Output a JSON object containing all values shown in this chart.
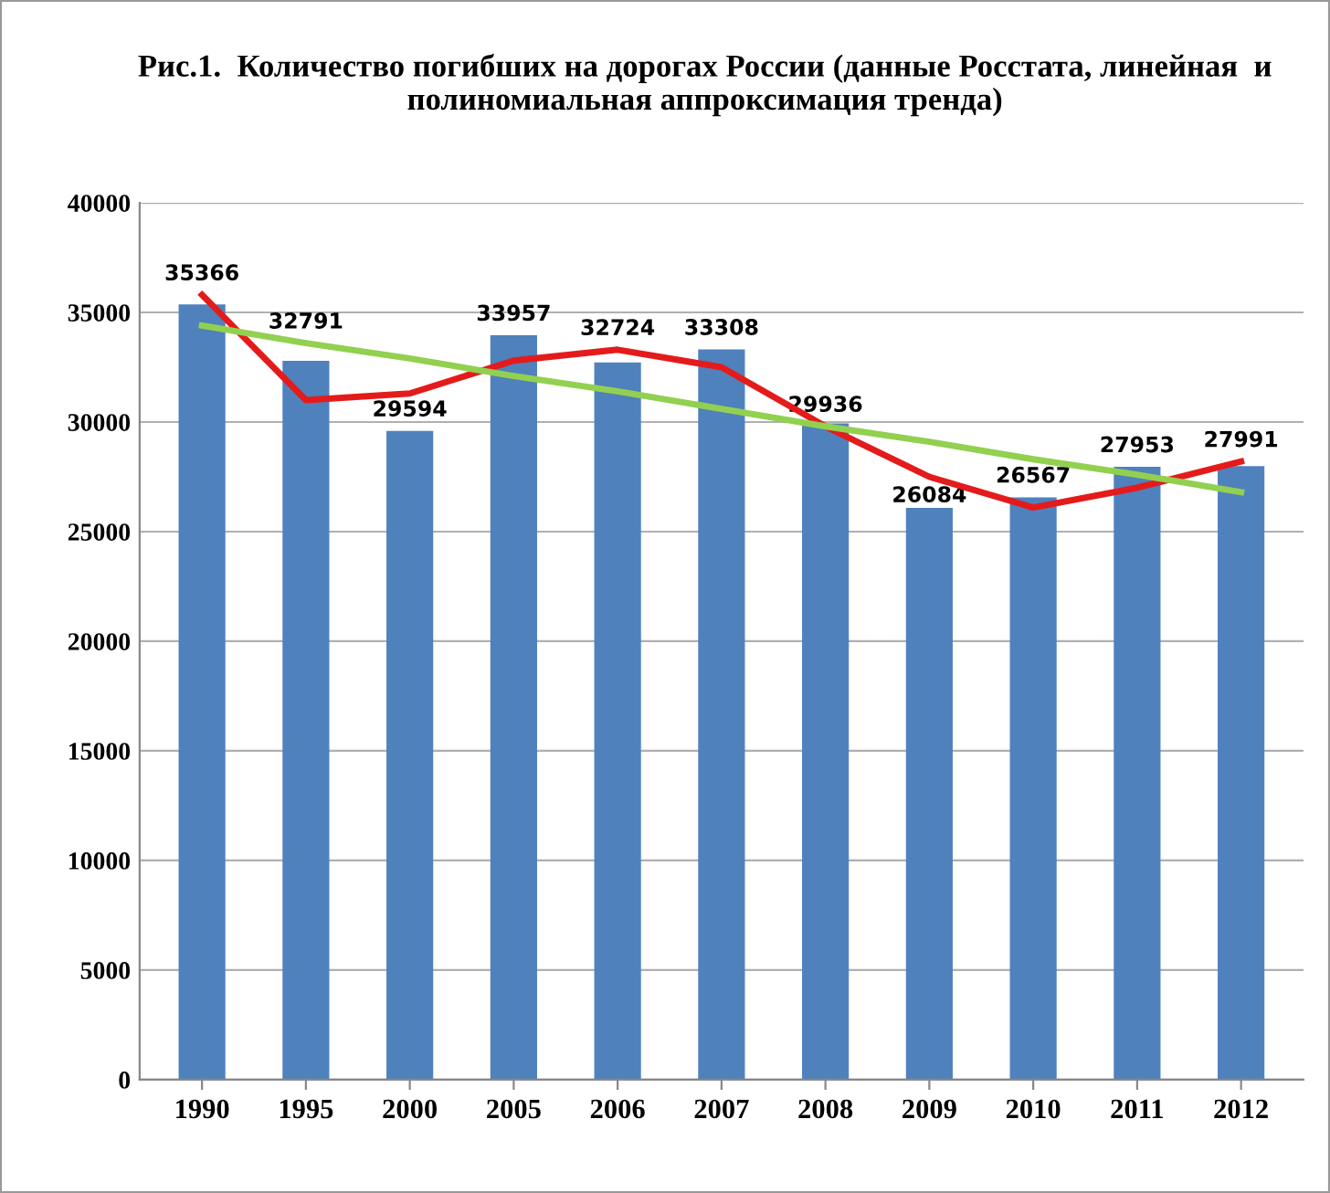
{
  "chart_data": {
    "type": "bar",
    "title": "Рис.1.  Количество погибших на дорогах России (данные Росстата, линейная  и полиномиальная аппроксимация тренда)",
    "categories": [
      "1990",
      "1995",
      "2000",
      "2005",
      "2006",
      "2007",
      "2008",
      "2009",
      "2010",
      "2011",
      "2012"
    ],
    "series": [
      {
        "color": "#4f81bd",
        "values": [
          35366,
          32791,
          29594,
          33957,
          32724,
          33308,
          29936,
          26084,
          26567,
          27953,
          27991
        ],
        "data_labels": true
      },
      {
        "type": "line",
        "color": "#e41b1b",
        "values": [
          35800,
          31000,
          31300,
          32800,
          33300,
          32500,
          29800,
          27500,
          26100,
          27000,
          28200
        ]
      },
      {
        "type": "line",
        "color": "#92d050",
        "values": [
          34400,
          33600,
          32900,
          32100,
          31400,
          30600,
          29800,
          29100,
          28300,
          27600,
          26800
        ]
      }
    ],
    "ylim": [
      0,
      40000
    ],
    "yticks": [
      0,
      5000,
      10000,
      15000,
      20000,
      25000,
      30000,
      35000,
      40000
    ],
    "grid": "y",
    "legend": false
  }
}
